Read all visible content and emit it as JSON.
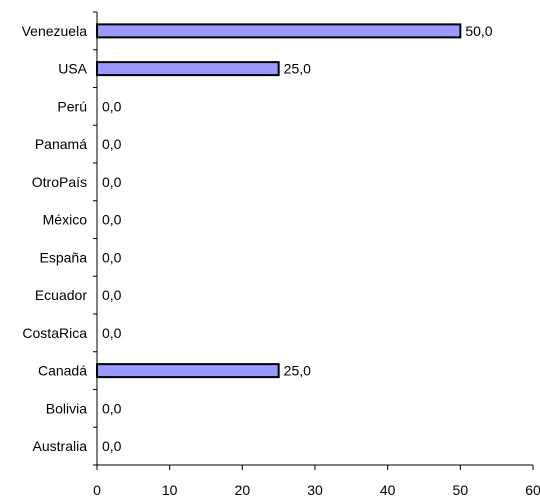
{
  "chart_data": {
    "type": "bar",
    "orientation": "horizontal",
    "categories": [
      "Venezuela",
      "USA",
      "Perú",
      "Panamá",
      "OtroPaís",
      "México",
      "España",
      "Ecuador",
      "CostaRica",
      "Canadá",
      "Bolivia",
      "Australia"
    ],
    "values": [
      50,
      25,
      0,
      0,
      0,
      0,
      0,
      0,
      0,
      25,
      0,
      0
    ],
    "value_labels": [
      "50,0",
      "25,0",
      "0,0",
      "0,0",
      "0,0",
      "0,0",
      "0,0",
      "0,0",
      "0,0",
      "25,0",
      "0,0",
      "0,0"
    ],
    "xlim": [
      0,
      60
    ],
    "x_ticks": [
      0,
      10,
      20,
      30,
      40,
      50,
      60
    ],
    "x_tick_labels": [
      "0",
      "10",
      "20",
      "30",
      "40",
      "50",
      "60"
    ],
    "title": "",
    "xlabel": "",
    "ylabel": "",
    "grid": false,
    "legend": "none",
    "bar_color": "#9999ff",
    "bar_border_color": "#000000"
  }
}
